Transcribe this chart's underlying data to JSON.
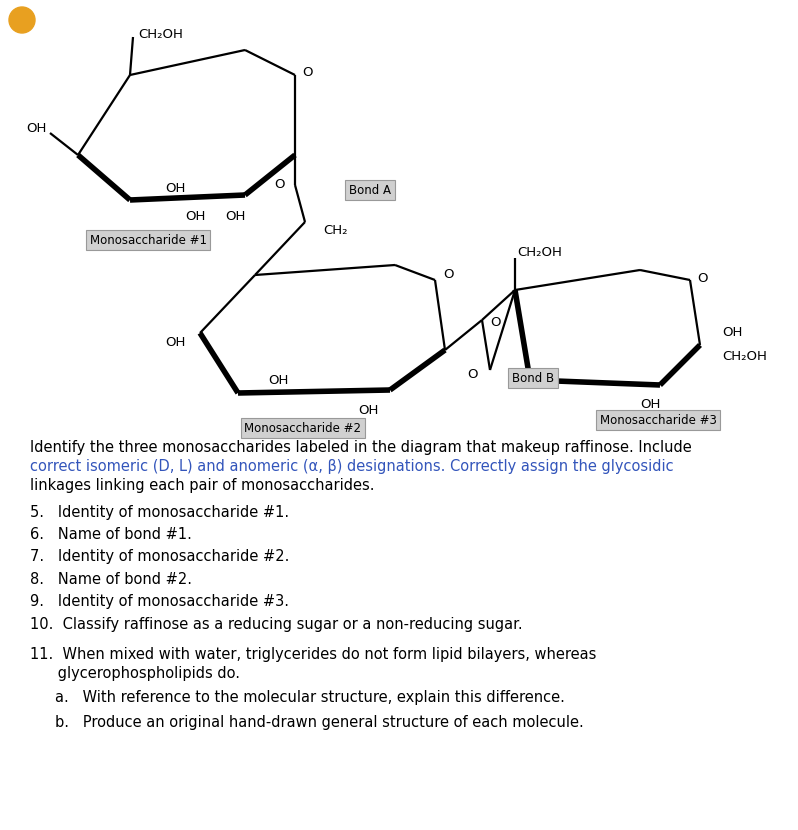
{
  "bg_color": "#ffffff",
  "line_color": "#000000",
  "thick_lw": 4.0,
  "thin_lw": 1.6,
  "font_size": 9.5,
  "label_bg": "#d0d0d0",
  "label_edge": "#999999",
  "paragraph_text_black1": "Identify the three monosaccharides labeled in the diagram that makeup raffinose. Include",
  "paragraph_text_blue": "correct isomeric (D, L) and anomeric (α, β) designations. Correctly assign the glycosidic",
  "paragraph_text_black2": "linkages linking each pair of monosaccharides.",
  "items": [
    "5.   Identity of monosaccharide #1.",
    "6.   Name of bond #1.",
    "7.   Identity of monosaccharide #2.",
    "8.   Name of bond #2.",
    "9.   Identity of monosaccharide #3.",
    "10.  Classify raffinose as a reducing sugar or a non-reducing sugar."
  ],
  "item11_line1": "11.  When mixed with water, triglycerides do not form lipid bilayers, whereas",
  "item11_line2": "      glycerophospholipids do.",
  "item11a": "a.   With reference to the molecular structure, explain this difference.",
  "item11b": "b.   Produce an original hand-drawn general structure of each molecule.",
  "blue_color": "#3355bb",
  "circle_color": "#e8a020"
}
